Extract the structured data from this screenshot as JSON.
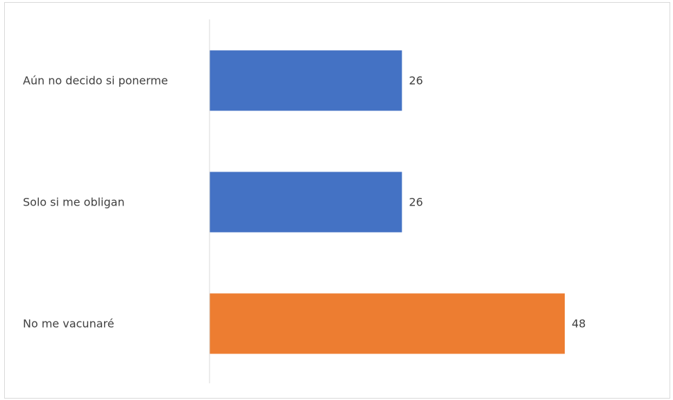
{
  "chart_data": {
    "type": "bar",
    "orientation": "horizontal",
    "title": "",
    "xlabel": "",
    "ylabel": "",
    "categories": [
      "Aún no decido si ponerme",
      "Solo si me obligan",
      "No me vacunaré"
    ],
    "values": [
      26,
      26,
      48
    ],
    "data_labels": [
      "26",
      "26",
      "48"
    ],
    "bar_colors": [
      "#4472C4",
      "#4472C4",
      "#ED7D31"
    ],
    "xlim": [
      0,
      48
    ],
    "grid": false,
    "legend": "none",
    "axis_color": "#d9d9d9",
    "text_color": "#404040"
  }
}
